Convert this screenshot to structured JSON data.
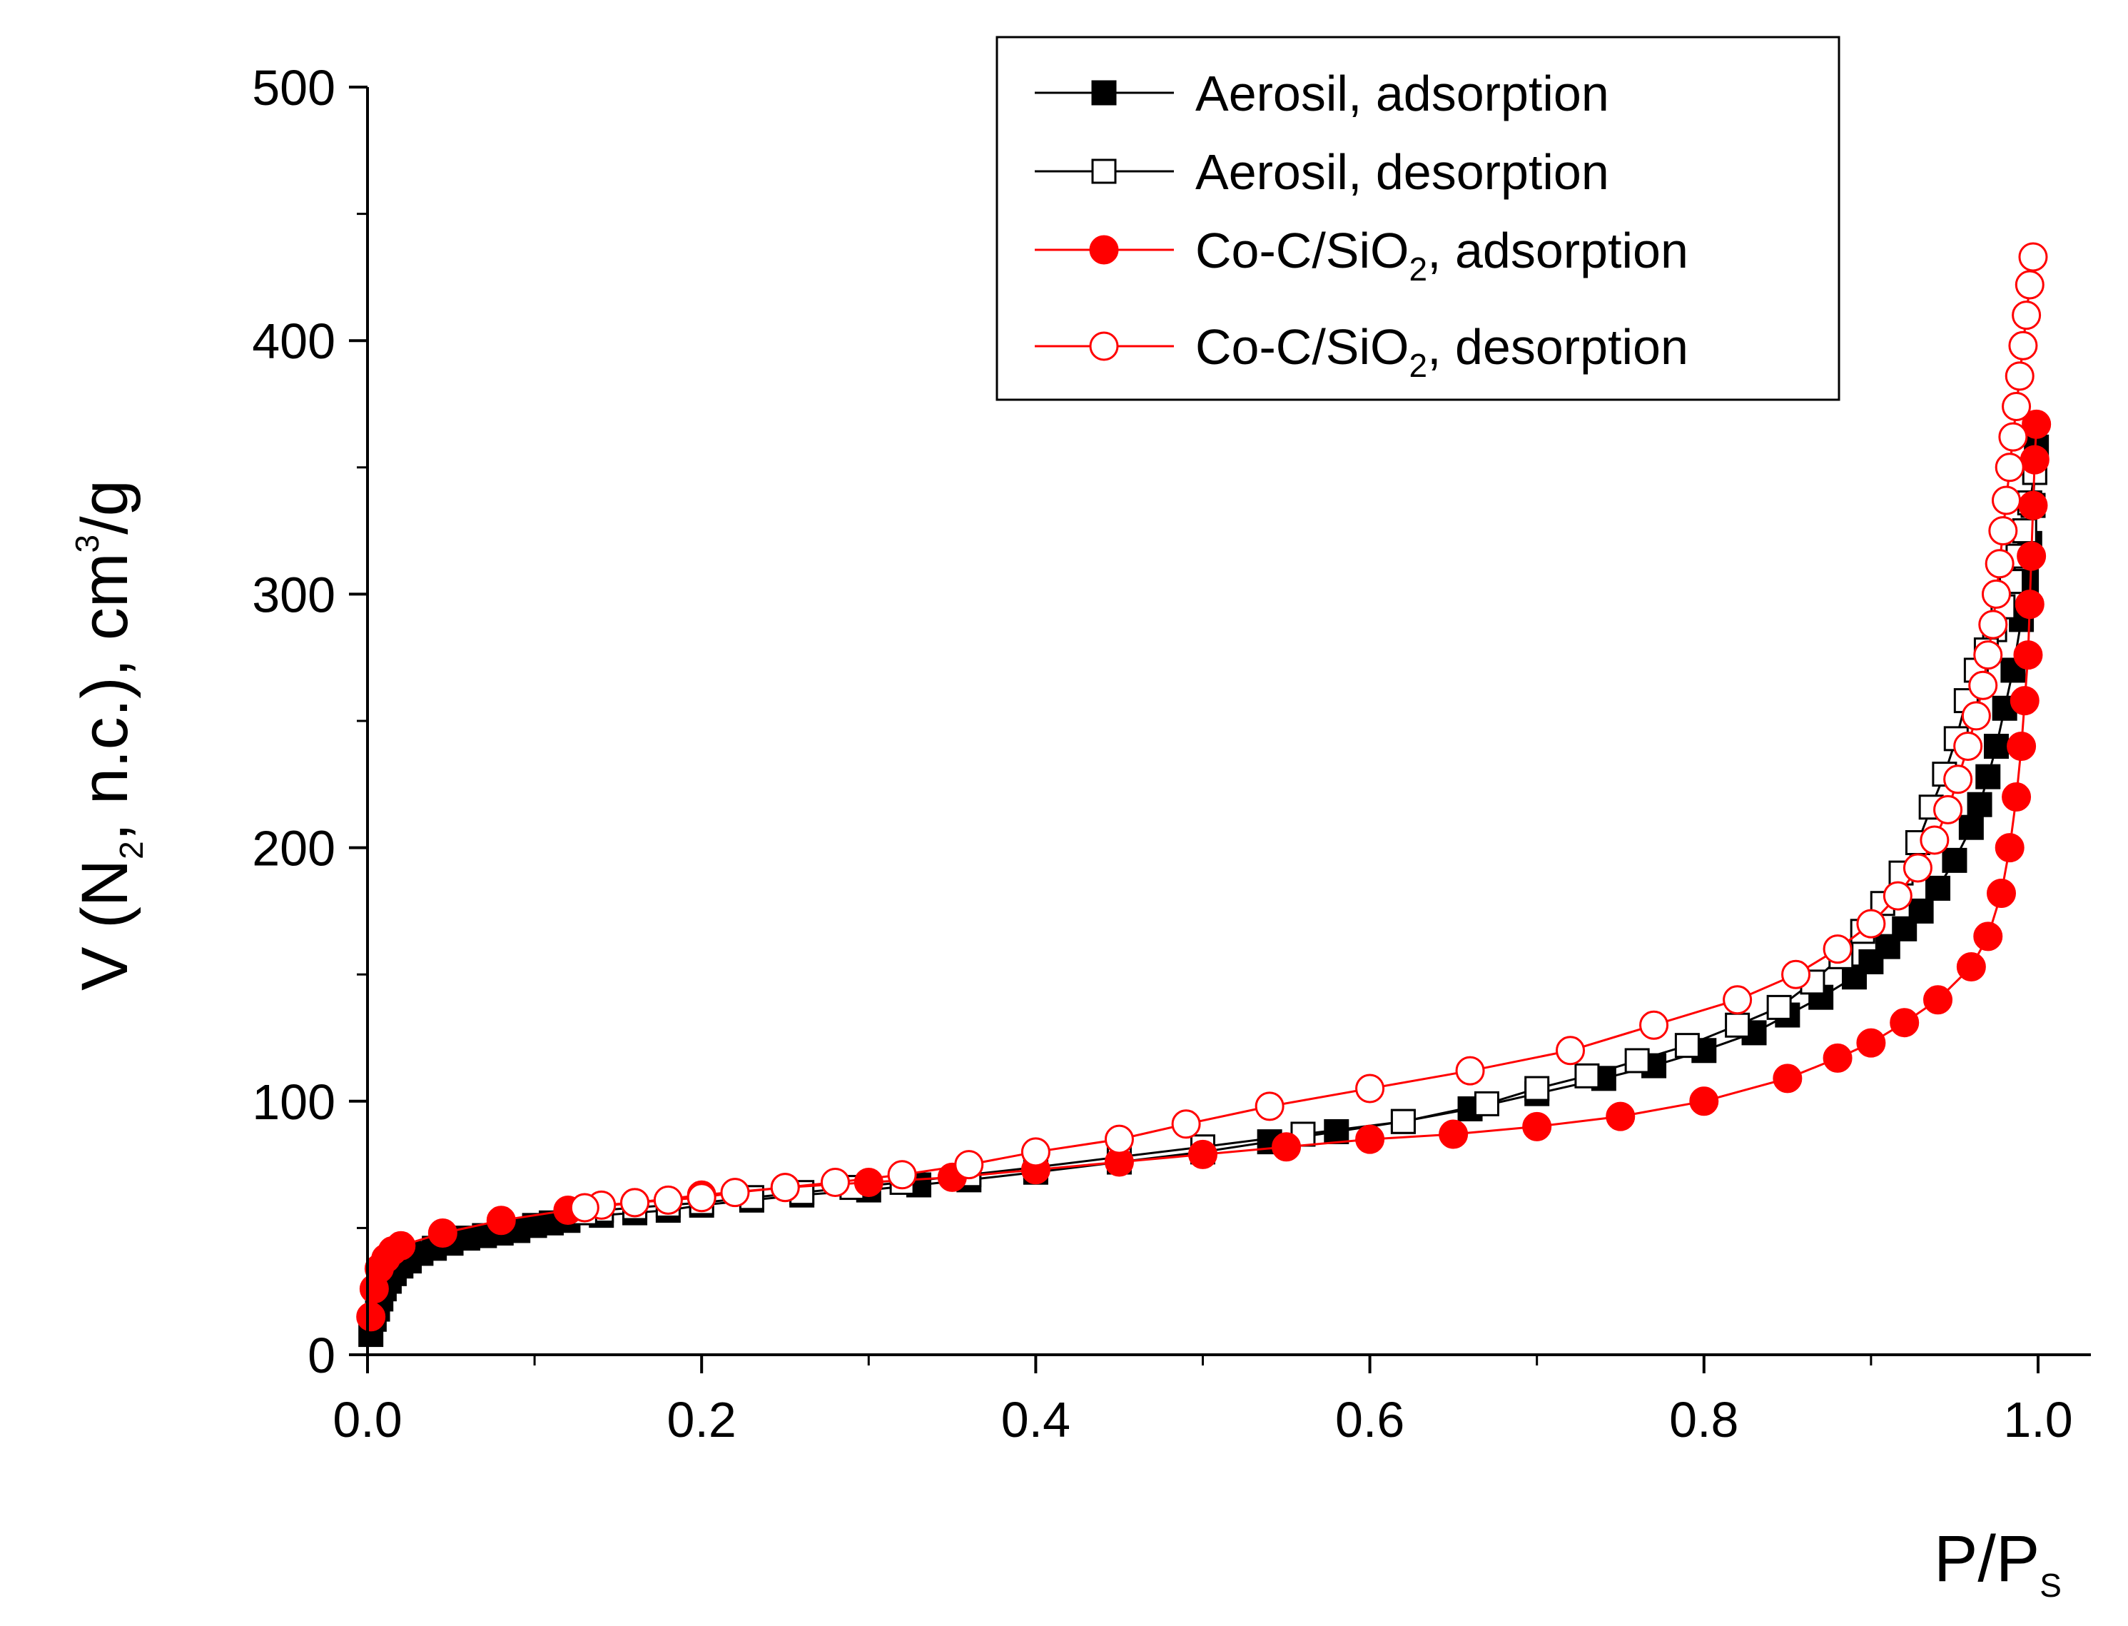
{
  "colors": {
    "black": "#000000",
    "red": "#ff0000",
    "background": "#ffffff"
  },
  "chart_data": {
    "type": "scatter",
    "title": "",
    "xlabel": "P/P_S",
    "ylabel": "V (N_2, n.c.), cm^3/g",
    "xlim": [
      0.0,
      1.03
    ],
    "ylim": [
      0,
      500
    ],
    "x_ticks": [
      "0.0",
      "0.2",
      "0.4",
      "0.6",
      "0.8",
      "1.0"
    ],
    "y_ticks": [
      "0",
      "100",
      "200",
      "300",
      "400",
      "500"
    ],
    "grid": false,
    "legend_position": "top-right",
    "series": [
      {
        "name": "Aerosil, adsorption",
        "color": "#000000",
        "marker": "square-filled",
        "x": [
          0.002,
          0.004,
          0.006,
          0.008,
          0.01,
          0.013,
          0.016,
          0.02,
          0.025,
          0.032,
          0.04,
          0.05,
          0.06,
          0.07,
          0.08,
          0.09,
          0.1,
          0.11,
          0.12,
          0.14,
          0.16,
          0.18,
          0.2,
          0.23,
          0.26,
          0.3,
          0.33,
          0.36,
          0.4,
          0.45,
          0.5,
          0.54,
          0.58,
          0.62,
          0.66,
          0.7,
          0.74,
          0.77,
          0.8,
          0.83,
          0.85,
          0.87,
          0.89,
          0.9,
          0.91,
          0.92,
          0.93,
          0.94,
          0.95,
          0.96,
          0.965,
          0.97,
          0.975,
          0.98,
          0.985,
          0.99,
          0.993,
          0.995,
          0.997,
          0.998,
          0.999
        ],
        "y": [
          8,
          14,
          18,
          22,
          26,
          29,
          32,
          35,
          37,
          40,
          42,
          44,
          46,
          47,
          48,
          49,
          51,
          52,
          53,
          55,
          56,
          57,
          59,
          61,
          63,
          65,
          67,
          69,
          72,
          76,
          80,
          84,
          88,
          92,
          97,
          103,
          109,
          114,
          120,
          127,
          134,
          141,
          149,
          155,
          161,
          168,
          175,
          184,
          195,
          208,
          217,
          228,
          240,
          255,
          270,
          290,
          305,
          320,
          335,
          348,
          358
        ]
      },
      {
        "name": "Aerosil, desorption",
        "color": "#000000",
        "marker": "square-open",
        "x": [
          0.998,
          0.995,
          0.992,
          0.988,
          0.984,
          0.979,
          0.974,
          0.969,
          0.963,
          0.957,
          0.951,
          0.944,
          0.936,
          0.928,
          0.918,
          0.907,
          0.895,
          0.882,
          0.865,
          0.845,
          0.82,
          0.79,
          0.76,
          0.73,
          0.7,
          0.67,
          0.62,
          0.56,
          0.5,
          0.45,
          0.4,
          0.36,
          0.32,
          0.29,
          0.26,
          0.23,
          0.2,
          0.18,
          0.16,
          0.14,
          0.13
        ],
        "y": [
          348,
          336,
          325,
          315,
          305,
          295,
          286,
          278,
          270,
          258,
          243,
          229,
          216,
          202,
          190,
          178,
          167,
          157,
          147,
          137,
          130,
          122,
          116,
          110,
          105,
          99,
          92,
          87,
          82,
          78,
          74,
          71,
          68,
          66,
          64,
          62,
          60,
          59,
          58,
          57,
          56
        ]
      },
      {
        "name": "Co-C/SiO_2, adsorption",
        "color": "#ff0000",
        "marker": "circle-filled",
        "x": [
          0.002,
          0.004,
          0.007,
          0.011,
          0.015,
          0.02,
          0.045,
          0.08,
          0.12,
          0.16,
          0.2,
          0.25,
          0.3,
          0.35,
          0.4,
          0.45,
          0.5,
          0.55,
          0.6,
          0.65,
          0.7,
          0.75,
          0.8,
          0.85,
          0.88,
          0.9,
          0.92,
          0.94,
          0.96,
          0.97,
          0.978,
          0.983,
          0.987,
          0.99,
          0.992,
          0.994,
          0.995,
          0.996,
          0.997,
          0.998,
          0.999
        ],
        "y": [
          15,
          26,
          34,
          38,
          41,
          43,
          48,
          53,
          57,
          60,
          63,
          66,
          68,
          70,
          73,
          76,
          79,
          82,
          85,
          87,
          90,
          94,
          100,
          109,
          117,
          123,
          131,
          140,
          153,
          165,
          182,
          200,
          220,
          240,
          258,
          276,
          296,
          315,
          335,
          353,
          367
        ]
      },
      {
        "name": "Co-C/SiO_2, desorption",
        "color": "#ff0000",
        "marker": "circle-open",
        "x": [
          0.997,
          0.995,
          0.993,
          0.991,
          0.989,
          0.987,
          0.985,
          0.983,
          0.981,
          0.979,
          0.977,
          0.975,
          0.973,
          0.97,
          0.967,
          0.963,
          0.958,
          0.952,
          0.946,
          0.938,
          0.928,
          0.916,
          0.9,
          0.88,
          0.855,
          0.82,
          0.77,
          0.72,
          0.66,
          0.6,
          0.54,
          0.49,
          0.45,
          0.4,
          0.36,
          0.32,
          0.28,
          0.25,
          0.22,
          0.2,
          0.18,
          0.16,
          0.14,
          0.13
        ],
        "y": [
          433,
          422,
          410,
          398,
          386,
          374,
          362,
          350,
          337,
          325,
          312,
          300,
          288,
          276,
          264,
          252,
          240,
          227,
          215,
          203,
          192,
          181,
          170,
          160,
          150,
          140,
          130,
          120,
          112,
          105,
          98,
          91,
          85,
          80,
          75,
          71,
          68,
          66,
          64,
          62,
          61,
          60,
          59,
          58
        ]
      }
    ]
  }
}
